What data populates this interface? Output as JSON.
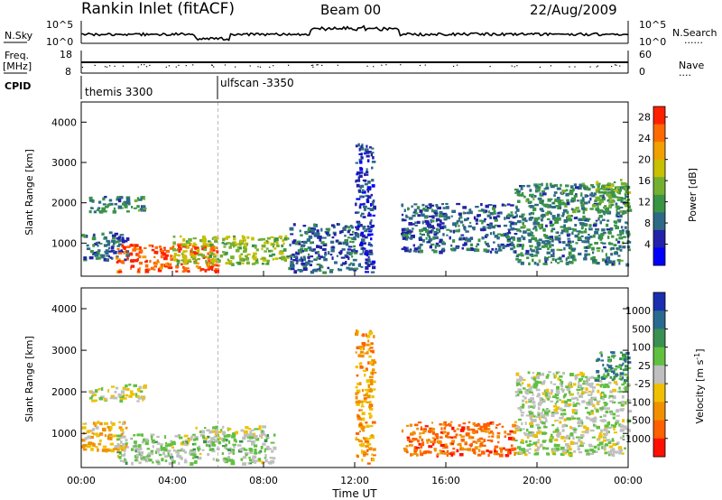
{
  "header": {
    "station": "Rankin Inlet (fitACF)",
    "beam": "Beam 00",
    "date": "22/Aug/2009"
  },
  "noise_panel": {
    "left_label": "N.Sky",
    "right_label": "N.Search",
    "right_legend": "......",
    "left_ticks": [
      "10^5",
      "10^0"
    ],
    "right_ticks": [
      "10^5",
      "10^0"
    ]
  },
  "freq_panel": {
    "left_label_line1": "Freq.",
    "left_label_line2": "[MHz]",
    "right_label": "Nave",
    "right_legend": "....",
    "left_ticks": [
      "18",
      "8"
    ],
    "right_ticks": [
      "60",
      "0"
    ]
  },
  "cpid": {
    "label": "CPID",
    "modes": [
      {
        "name": "themis 3300",
        "start_hour": 0.0
      },
      {
        "name": "ulfscan -3350",
        "start_hour": 6.0
      }
    ]
  },
  "x_axis": {
    "label": "Time UT",
    "ticks": [
      "00:00",
      "04:00",
      "08:00",
      "12:00",
      "16:00",
      "20:00",
      "00:00"
    ],
    "range_hours": [
      0,
      24
    ]
  },
  "colors": {
    "power": [
      "#0000ff",
      "#2222a8",
      "#2e6a86",
      "#3a9446",
      "#74b030",
      "#c8c000",
      "#f0a000",
      "#ff6a00",
      "#ff2000"
    ],
    "velocity": [
      "#1a2eb0",
      "#2a6a90",
      "#3a9050",
      "#60c040",
      "#bfbfbf",
      "#f0c000",
      "#f09000",
      "#ff6000",
      "#ff1000"
    ]
  },
  "chart_data": [
    {
      "type": "heatmap",
      "title": "",
      "xlabel": "",
      "ylabel": "Slant Range [km]",
      "xlim": [
        0,
        24
      ],
      "ylim": [
        180,
        4500
      ],
      "y_ticks": [
        "1000",
        "2000",
        "3000",
        "4000"
      ],
      "colorbar": {
        "label": "Power [dB]",
        "ticks": [
          "4",
          "8",
          "12",
          "16",
          "20",
          "24",
          "28"
        ],
        "range": [
          0,
          30
        ]
      },
      "regions": [
        {
          "t0": 0.0,
          "t1": 2.0,
          "r0": 600,
          "r1": 1300,
          "value": 8
        },
        {
          "t0": 1.5,
          "t1": 6.0,
          "r0": 300,
          "r1": 1000,
          "value": 26
        },
        {
          "t0": 4.0,
          "t1": 9.0,
          "r0": 500,
          "r1": 1200,
          "value": 16
        },
        {
          "t0": 0.3,
          "t1": 2.8,
          "r0": 1800,
          "r1": 2200,
          "value": 10
        },
        {
          "t0": 9.0,
          "t1": 12.0,
          "r0": 300,
          "r1": 1500,
          "value": 8
        },
        {
          "t0": 12.0,
          "t1": 12.8,
          "r0": 300,
          "r1": 3500,
          "value": 6
        },
        {
          "t0": 14.0,
          "t1": 19.0,
          "r0": 800,
          "r1": 2000,
          "value": 8
        },
        {
          "t0": 19.0,
          "t1": 24.0,
          "r0": 500,
          "r1": 2500,
          "value": 10
        },
        {
          "t0": 22.5,
          "t1": 24.0,
          "r0": 1800,
          "r1": 2600,
          "value": 14
        }
      ]
    },
    {
      "type": "heatmap",
      "title": "",
      "xlabel": "Time UT",
      "ylabel": "Slant Range [km]",
      "xlim": [
        0,
        24
      ],
      "ylim": [
        180,
        4500
      ],
      "y_ticks": [
        "1000",
        "2000",
        "3000",
        "4000"
      ],
      "colorbar": {
        "label": "Velocity [m s^-1]",
        "ticks": [
          "1000",
          "500",
          "100",
          "25",
          "-25",
          "-100",
          "-500",
          "-1000"
        ],
        "range": [
          -1000,
          1000
        ]
      },
      "regions": [
        {
          "t0": 0.0,
          "t1": 2.0,
          "r0": 600,
          "r1": 1300,
          "value": -300
        },
        {
          "t0": 1.5,
          "t1": 8.5,
          "r0": 300,
          "r1": 1000,
          "value": 120
        },
        {
          "t0": 5.0,
          "t1": 8.0,
          "r0": 900,
          "r1": 1200,
          "value": 0
        },
        {
          "t0": 0.3,
          "t1": 2.8,
          "r0": 1800,
          "r1": 2200,
          "value": -50
        },
        {
          "t0": 12.0,
          "t1": 12.8,
          "r0": 300,
          "r1": 3500,
          "value": -400
        },
        {
          "t0": 14.0,
          "t1": 19.0,
          "r0": 500,
          "r1": 1300,
          "value": -600
        },
        {
          "t0": 19.0,
          "t1": 24.0,
          "r0": 500,
          "r1": 2500,
          "value": 50
        },
        {
          "t0": 22.5,
          "t1": 24.0,
          "r0": 2300,
          "r1": 3000,
          "value": 500
        }
      ]
    }
  ]
}
